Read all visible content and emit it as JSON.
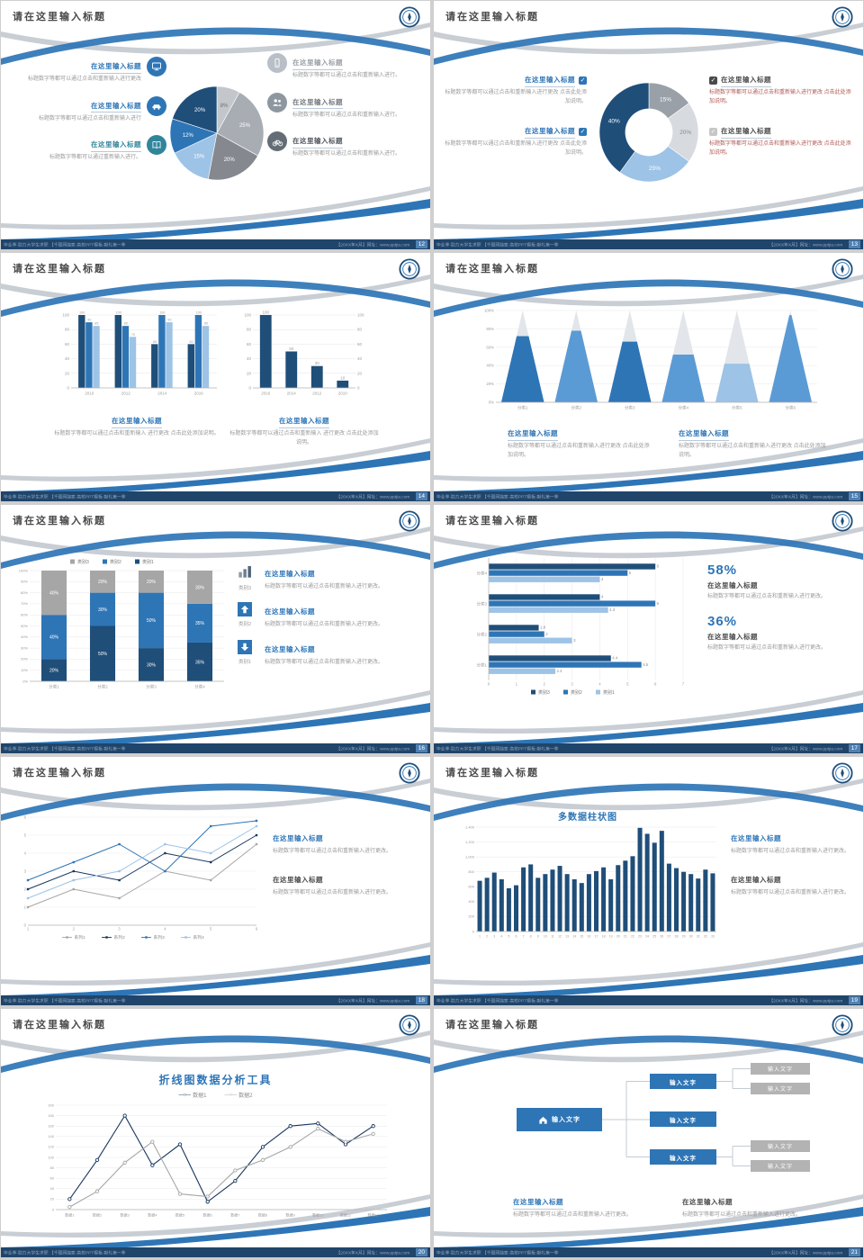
{
  "theme": {
    "blue_dark": "#1f4e79",
    "blue": "#2e75b6",
    "blue_light": "#9dc3e6",
    "teal": "#31859b",
    "gray": "#a6a6a6",
    "footer_bg": "#20456b",
    "red_text": "#b05a55"
  },
  "common": {
    "slide_title": "请在这里输入标题",
    "footer_left": "毕业季·助力大学生求职 【千图网独家·高校PPT模板·献礼第一季",
    "footer_right": "【20XX年X月】网址：www.pptjia.com"
  },
  "slides": [
    {
      "page": "12",
      "left_items": [
        {
          "title": "在这里输入标题",
          "text": "标题数字等都可以通过点击和重新输入进行更改",
          "icon": "monitor-icon",
          "color": "#2e75b6"
        },
        {
          "title": "在这里输入标题",
          "text": "标题数字等都可以通过点击和重新输入进行",
          "icon": "car-icon",
          "color": "#2e75b6"
        },
        {
          "title": "在这里输入标题",
          "text": "标题数字等都可以通过重新输入进行。",
          "icon": "book-icon",
          "color": "#31859b"
        }
      ],
      "right_items": [
        {
          "title": "在这里输入标题",
          "text": "标题数字等都可以通过点击和重新输入进行。",
          "icon": "phone-icon",
          "color": "#b9bfc6",
          "title_color": "#9aa0a6"
        },
        {
          "title": "在这里输入标题",
          "text": "标题数字等都可以通过点击和重新输入进行。",
          "icon": "people-icon",
          "color": "#8e979f",
          "title_color": "#75797e"
        },
        {
          "title": "在这里输入标题",
          "text": "标题数字等都可以通过点击和重新输入进行。",
          "icon": "bike-icon",
          "color": "#646d75",
          "title_color": "#4f565e"
        }
      ],
      "chart_data": {
        "type": "pie",
        "values": [
          8,
          25,
          20,
          15,
          12,
          20
        ],
        "labels": [
          "8%",
          "25%",
          "20%",
          "15%",
          "12%",
          "20%"
        ],
        "colors": [
          "#c3c7cc",
          "#a8adb4",
          "#85898f",
          "#9dc3e6",
          "#2e75b6",
          "#1f4e79"
        ],
        "label_colors": [
          "#6f6f6f",
          "#ffffff",
          "#ffffff",
          "#ffffff",
          "#ffffff",
          "#ffffff"
        ]
      }
    },
    {
      "page": "13",
      "left_items": [
        {
          "title": "在这里输入标题",
          "text": "标题数字等都可以通过点击和重新输入进行更改 点击此处添加说明。",
          "check_color": "#2e75b6"
        },
        {
          "title": "在这里输入标题",
          "text": "标题数字等都可以通过点击和重新输入进行更改 点击此处添加说明。",
          "check_color": "#2e75b6"
        }
      ],
      "right_items": [
        {
          "title": "在这里输入标题",
          "text": "标题数字等都可以通过点击和重新输入进行更改 点击此处添加说明。",
          "check_color": "#4a4a4a",
          "text_color": "#b05a55"
        },
        {
          "title": "在这里输入标题",
          "text": "标题数字等都可以通过点击和重新输入进行更改 点击此处添加说明。",
          "check_color": "#c6c6c6",
          "text_color": "#b05a55"
        }
      ],
      "chart_data": {
        "type": "donut",
        "values": [
          15,
          20,
          25,
          40
        ],
        "labels": [
          "15%",
          "20%",
          "25%",
          "40%"
        ],
        "colors": [
          "#9aa0a8",
          "#d7dade",
          "#9dc3e6",
          "#1f4e79"
        ],
        "label_colors": [
          "#ffffff",
          "#8a8a8a",
          "#ffffff",
          "#ffffff"
        ]
      }
    },
    {
      "page": "14",
      "chart_left": {
        "type": "bar-grouped",
        "categories": [
          "2010",
          "2012",
          "2014",
          "2016"
        ],
        "ylim": [
          0,
          100
        ],
        "series": [
          {
            "name": "系列1",
            "color": "#1f4e79",
            "values": [
              100,
              100,
              60,
              60
            ]
          },
          {
            "name": "系列2",
            "color": "#2e75b6",
            "values": [
              90,
              85,
              100,
              100
            ]
          },
          {
            "name": "系列3",
            "color": "#9dc3e6",
            "values": [
              85,
              70,
              90,
              85
            ]
          }
        ]
      },
      "chart_right": {
        "type": "bar",
        "categories": [
          "2016",
          "2014",
          "2012",
          "2010"
        ],
        "values": [
          100,
          50,
          30,
          10
        ],
        "color": "#1f4e79",
        "ylim": [
          0,
          100
        ]
      },
      "sections": [
        {
          "title": "在这里输入标题",
          "text": "标题数字等都可以通过点击和重新输入 进行更改 点击此处添加说明。"
        },
        {
          "title": "在这里输入标题",
          "text": "标题数字等都可以通过点击和重新输入 进行更改 点击此处添加说明。"
        }
      ]
    },
    {
      "page": "15",
      "chart_data": {
        "type": "pyramid",
        "categories": [
          "分类1",
          "分类2",
          "分类3",
          "分类4",
          "分类5",
          "分类6"
        ],
        "values": [
          72,
          78,
          66,
          52,
          42,
          95
        ],
        "ylim": [
          0,
          100
        ],
        "colors": [
          "#2e75b6",
          "#5b9bd5",
          "#2e75b6",
          "#5b9bd5",
          "#9dc3e6",
          "#5b9bd5"
        ]
      },
      "sections": [
        {
          "title": "在这里输入标题",
          "text": "标题数字等都可以通过点击和重新输入进行更改 点击此处添加说明。"
        },
        {
          "title": "在这里输入标题",
          "text": "标题数字等都可以通过点击和重新输入进行更改 点击此处添加说明。"
        }
      ]
    },
    {
      "page": "16",
      "chart_data": {
        "type": "stacked-bar",
        "categories": [
          "分类1",
          "分类2",
          "分类3",
          "分类4"
        ],
        "ylim": [
          0,
          100
        ],
        "legend_order": [
          "类别3",
          "类别2",
          "类别1"
        ],
        "series": [
          {
            "name": "类别1",
            "color": "#1f4e79",
            "values": [
              20,
              50,
              30,
              35
            ]
          },
          {
            "name": "类别2",
            "color": "#2e75b6",
            "values": [
              40,
              30,
              50,
              35
            ]
          },
          {
            "name": "类别3",
            "color": "#a6a6a6",
            "values": [
              40,
              20,
              20,
              30
            ]
          }
        ]
      },
      "items": [
        {
          "label": "类别3",
          "icon": "bar-chart-icon",
          "title": "在这里输入标题",
          "text": "标题数字等都可以通过点击和重新输入进行更改。"
        },
        {
          "label": "类别2",
          "icon": "arrow-up-icon",
          "title": "在这里输入标题",
          "text": "标题数字等都可以通过点击和重新输入进行更改。"
        },
        {
          "label": "类别1",
          "icon": "arrow-down-icon",
          "title": "在这里输入标题",
          "text": "标题数字等都可以通过点击和重新输入进行更改。"
        }
      ]
    },
    {
      "page": "17",
      "chart_data": {
        "type": "hbar",
        "categories": [
          "分类1",
          "分类2",
          "分类3",
          "分类4"
        ],
        "xlim": [
          0,
          7
        ],
        "series": [
          {
            "name": "类别3",
            "color": "#1f4e79",
            "values": [
              4.4,
              1.8,
              4,
              6
            ]
          },
          {
            "name": "类别2",
            "color": "#2e75b6",
            "values": [
              5.5,
              2,
              6,
              5
            ]
          },
          {
            "name": "类别1",
            "color": "#9dc3e6",
            "values": [
              2.4,
              3,
              4.3,
              4
            ]
          }
        ]
      },
      "stats": [
        {
          "value": "58%",
          "title": "在这里输入标题",
          "text": "标题数字等都可以通过点击和重新输入进行更改。"
        },
        {
          "value": "36%",
          "title": "在这里输入标题",
          "text": "标题数字等都可以通过点击和重新输入进行更改。"
        }
      ]
    },
    {
      "page": "18",
      "chart_data": {
        "type": "line",
        "x": [
          "1",
          "2",
          "3",
          "4",
          "5",
          "6"
        ],
        "ylim": [
          0,
          6
        ],
        "series": [
          {
            "name": "系列1",
            "color": "#a6a6a6",
            "values": [
              1,
              2,
              1.5,
              3,
              2.5,
              4.5
            ]
          },
          {
            "name": "系列2",
            "color": "#17375e",
            "values": [
              2,
              3,
              2.5,
              4,
              3.5,
              5
            ]
          },
          {
            "name": "系列3",
            "color": "#2e75b6",
            "values": [
              2.5,
              3.5,
              4.5,
              3,
              5.5,
              5.8
            ]
          },
          {
            "name": "系列4",
            "color": "#9dc3e6",
            "values": [
              1.5,
              2.5,
              3,
              4.5,
              4,
              5.5
            ]
          }
        ]
      },
      "sections": [
        {
          "title": "在这里输入标题",
          "text": "标题数字等都可以通过点击和重新输入进行更改。"
        },
        {
          "title": "在这里输入标题",
          "text": "标题数字等都可以通过点击和重新输入进行更改。"
        }
      ]
    },
    {
      "page": "19",
      "chart_title": "多数据柱状图",
      "chart_data": {
        "type": "bar",
        "color": "#1f4e79",
        "ylim": [
          0,
          1400
        ],
        "categories": [
          "1",
          "2",
          "3",
          "4",
          "5",
          "6",
          "7",
          "8",
          "9",
          "10",
          "11",
          "12",
          "13",
          "14",
          "15",
          "16",
          "17",
          "18",
          "19",
          "20",
          "21",
          "22",
          "23",
          "24",
          "25",
          "26",
          "27",
          "28",
          "29",
          "30",
          "31",
          "32",
          "33"
        ],
        "values": [
          680,
          720,
          790,
          700,
          580,
          620,
          860,
          900,
          720,
          770,
          830,
          880,
          770,
          700,
          650,
          770,
          810,
          860,
          700,
          890,
          950,
          1010,
          1390,
          1310,
          1190,
          1350,
          910,
          850,
          800,
          770,
          710,
          830,
          780
        ],
        "ytick_vals": [
          0,
          200,
          400,
          600,
          800,
          1000,
          1200,
          1400
        ],
        "yticks": [
          "0",
          "200",
          "400",
          "600",
          "800",
          "1,000",
          "1,200",
          "1,400"
        ]
      },
      "sections": [
        {
          "title": "在这里输入标题",
          "text": "标题数字等都可以通过点击和重新输入进行更改。"
        },
        {
          "title": "在这里输入标题",
          "text": "标题数字等都可以通过点击和重新输入进行更改。"
        }
      ]
    },
    {
      "page": "20",
      "chart_title": "折线图数据分析工具",
      "chart_data": {
        "type": "line",
        "ylim": [
          0,
          200
        ],
        "ytick_step": 20,
        "categories": [
          "数据1",
          "数据2",
          "数据3",
          "数据4",
          "数据5",
          "数据6",
          "数据7",
          "数据8",
          "数据9",
          "数据10",
          "数据11",
          "数据12"
        ],
        "series": [
          {
            "name": "数据1",
            "color": "#17375e",
            "values": [
              20,
              95,
              180,
              85,
              125,
              15,
              55,
              120,
              160,
              165,
              125,
              160
            ]
          },
          {
            "name": "数据2",
            "color": "#a6a6a6",
            "values": [
              5,
              35,
              90,
              130,
              30,
              25,
              75,
              95,
              120,
              155,
              130,
              145
            ]
          }
        ]
      }
    },
    {
      "page": "21",
      "root_label": "输入文字",
      "children": [
        "输入文字",
        "输入文字",
        "输入文字"
      ],
      "leaves": [
        "输入文字",
        "输入文字",
        "输入文字",
        "输入文字"
      ],
      "sections": [
        {
          "title": "在这里输入标题",
          "text": "标题数字等都可以通过点击和重新输入进行更改。"
        },
        {
          "title": "在这里输入标题",
          "text": "标题数字等都可以通过点击和重新输入进行更改。"
        }
      ]
    }
  ]
}
